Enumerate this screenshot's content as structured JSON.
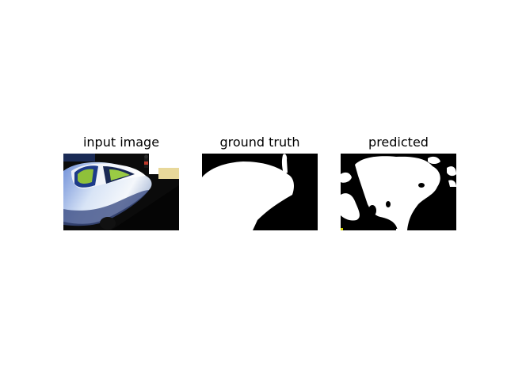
{
  "figure": {
    "panels": [
      {
        "title": "input image"
      },
      {
        "title": "ground truth"
      },
      {
        "title": "predicted"
      }
    ]
  }
}
